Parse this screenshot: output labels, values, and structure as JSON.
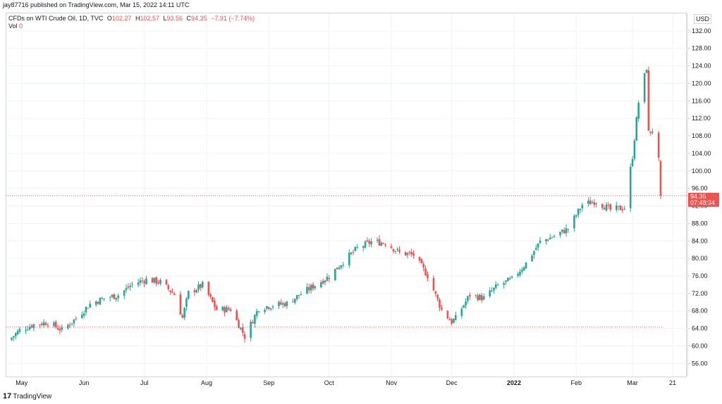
{
  "header": {
    "published": "jay87716 published on TradingView.com, Mar 15, 2022 14:11 UTC"
  },
  "legend": {
    "symbol": "CFDs on WTI Crude Oil, 1D, TVC",
    "o_label": "O",
    "o_value": "102.27",
    "h_label": "H",
    "h_value": "102.57",
    "l_label": "L",
    "l_value": "93.56",
    "c_label": "C",
    "c_value": "94.35",
    "change": "−7.91 (−7.74%)",
    "vol_label": "Vol",
    "vol_value": "0"
  },
  "currency": "USD",
  "footer": {
    "brand": "TradingView"
  },
  "price_label": {
    "price": "94.35",
    "countdown": "07:48:34"
  },
  "colors": {
    "up": "#26a69a",
    "down": "#ef5350",
    "grid": "#f0f3fa",
    "axis": "#d1d4dc"
  },
  "chart_data": {
    "type": "candlestick",
    "y_ticks": [
      56,
      60,
      64,
      68,
      72,
      76,
      80,
      84,
      88,
      92,
      96,
      100,
      104,
      108,
      112,
      116,
      120,
      124,
      128,
      132
    ],
    "y_tick_labels": [
      "56.00",
      "60.00",
      "64.00",
      "68.00",
      "72.00",
      "76.00",
      "80.00",
      "84.00",
      "88.00",
      "92.00",
      "96.00",
      "100.00",
      "104.00",
      "108.00",
      "112.00",
      "116.00",
      "120.00",
      "124.00",
      "128.00",
      "132.00"
    ],
    "ylim": [
      53.0,
      136.0
    ],
    "x_labels": [
      {
        "label": "May",
        "date": "2021-05-01"
      },
      {
        "label": "Jun",
        "date": "2021-06-01"
      },
      {
        "label": "Jul",
        "date": "2021-07-01"
      },
      {
        "label": "Aug",
        "date": "2021-08-01"
      },
      {
        "label": "Sep",
        "date": "2021-09-01"
      },
      {
        "label": "Oct",
        "date": "2021-10-01"
      },
      {
        "label": "Nov",
        "date": "2021-11-01"
      },
      {
        "label": "Dec",
        "date": "2021-12-01"
      },
      {
        "label": "2022",
        "date": "2022-01-01"
      },
      {
        "label": "Feb",
        "date": "2022-02-01"
      },
      {
        "label": "Mar",
        "date": "2022-03-01"
      },
      {
        "label": "21",
        "date": "2022-03-21"
      }
    ],
    "date_range": [
      "2021-04-23",
      "2022-03-28"
    ],
    "last_price": 94.35,
    "reference_level": 64.35,
    "closes": [
      [
        "2021-04-26",
        61.9
      ],
      [
        "2021-04-30",
        63.6
      ],
      [
        "2021-05-07",
        64.9
      ],
      [
        "2021-05-14",
        65.4
      ],
      [
        "2021-05-21",
        63.6
      ],
      [
        "2021-05-28",
        66.3
      ],
      [
        "2021-06-04",
        69.6
      ],
      [
        "2021-06-11",
        70.9
      ],
      [
        "2021-06-18",
        71.6
      ],
      [
        "2021-06-25",
        74.1
      ],
      [
        "2021-07-02",
        75.2
      ],
      [
        "2021-07-09",
        74.6
      ],
      [
        "2021-07-16",
        71.8
      ],
      [
        "2021-07-20",
        66.4
      ],
      [
        "2021-07-23",
        72.1
      ],
      [
        "2021-07-30",
        73.9
      ],
      [
        "2021-08-06",
        68.3
      ],
      [
        "2021-08-13",
        68.4
      ],
      [
        "2021-08-20",
        62.2
      ],
      [
        "2021-08-27",
        68.7
      ],
      [
        "2021-09-03",
        69.3
      ],
      [
        "2021-09-10",
        69.7
      ],
      [
        "2021-09-17",
        71.9
      ],
      [
        "2021-09-24",
        73.9
      ],
      [
        "2021-10-01",
        75.9
      ],
      [
        "2021-10-08",
        79.3
      ],
      [
        "2021-10-15",
        82.3
      ],
      [
        "2021-10-22",
        83.8
      ],
      [
        "2021-10-29",
        83.6
      ],
      [
        "2021-11-05",
        81.3
      ],
      [
        "2021-11-12",
        80.8
      ],
      [
        "2021-11-19",
        76.1
      ],
      [
        "2021-11-26",
        68.2
      ],
      [
        "2021-12-01",
        65.5
      ],
      [
        "2021-12-03",
        66.3
      ],
      [
        "2021-12-10",
        71.7
      ],
      [
        "2021-12-17",
        70.9
      ],
      [
        "2021-12-24",
        73.8
      ],
      [
        "2021-12-31",
        75.2
      ],
      [
        "2022-01-07",
        78.9
      ],
      [
        "2022-01-14",
        83.8
      ],
      [
        "2022-01-21",
        85.1
      ],
      [
        "2022-01-28",
        86.8
      ],
      [
        "2022-02-04",
        92.3
      ],
      [
        "2022-02-11",
        93.1
      ],
      [
        "2022-02-18",
        91.1
      ],
      [
        "2022-02-25",
        91.6
      ],
      [
        "2022-03-01",
        103.4
      ],
      [
        "2022-03-04",
        115.7
      ],
      [
        "2022-03-08",
        123.7
      ],
      [
        "2022-03-09",
        108.7
      ],
      [
        "2022-03-11",
        109.3
      ],
      [
        "2022-03-14",
        102.3
      ],
      [
        "2022-03-15",
        94.35
      ]
    ]
  }
}
